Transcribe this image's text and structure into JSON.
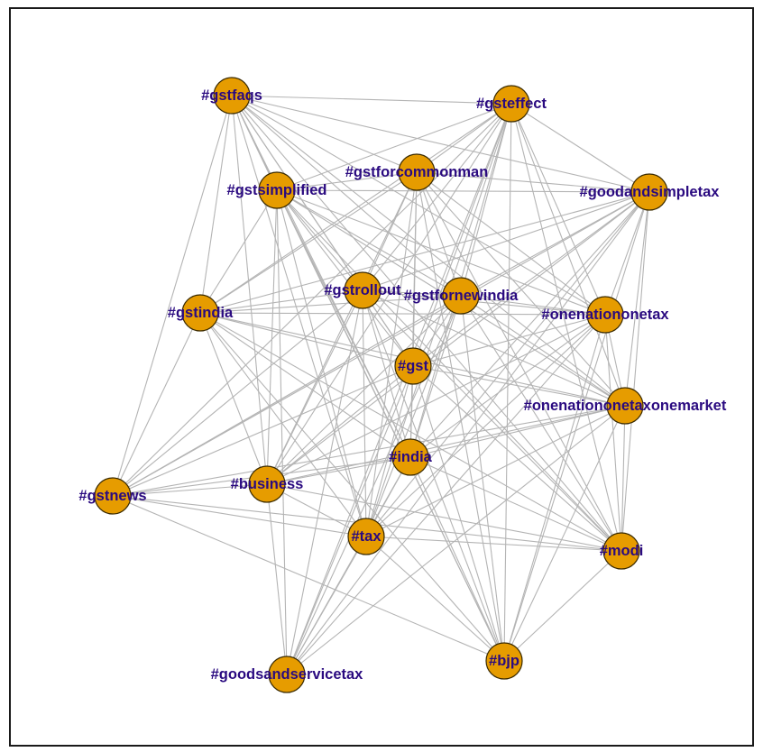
{
  "colors": {
    "node_fill": "#e69c00",
    "edge": "#b4b4b4",
    "label": "#2a0a80"
  },
  "nodes": [
    {
      "id": "gstfaqs",
      "label": "#gstfaqs"
    },
    {
      "id": "gsteffect",
      "label": "#gsteffect"
    },
    {
      "id": "gstforcommonman",
      "label": "#gstforcommonman"
    },
    {
      "id": "gstsimplified",
      "label": "#gstsimplified"
    },
    {
      "id": "goodandsimpletax",
      "label": "#goodandsimpletax"
    },
    {
      "id": "gstrollout",
      "label": "#gstrollout"
    },
    {
      "id": "gstfornewindia",
      "label": "#gstfornewindia"
    },
    {
      "id": "gstindia",
      "label": "#gstindia"
    },
    {
      "id": "onenationonetax",
      "label": "#onenationonetax"
    },
    {
      "id": "gst",
      "label": "#gst"
    },
    {
      "id": "onenationonetaxonemarket",
      "label": "#onenationonetaxonemarket"
    },
    {
      "id": "india",
      "label": "#india"
    },
    {
      "id": "gstnews",
      "label": "#gstnews"
    },
    {
      "id": "business",
      "label": "#business"
    },
    {
      "id": "tax",
      "label": "#tax"
    },
    {
      "id": "modi",
      "label": "#modi"
    },
    {
      "id": "bjp",
      "label": "#bjp"
    },
    {
      "id": "goodsandservicetax",
      "label": "#goodsandservicetax"
    }
  ],
  "edges": [
    [
      "gstfaqs",
      "gsteffect"
    ],
    [
      "gstfaqs",
      "gstforcommonman"
    ],
    [
      "gstfaqs",
      "gstsimplified"
    ],
    [
      "gstfaqs",
      "goodandsimpletax"
    ],
    [
      "gstfaqs",
      "gstrollout"
    ],
    [
      "gstfaqs",
      "gstfornewindia"
    ],
    [
      "gstfaqs",
      "gstindia"
    ],
    [
      "gstfaqs",
      "onenationonetax"
    ],
    [
      "gstfaqs",
      "gst"
    ],
    [
      "gstfaqs",
      "onenationonetaxonemarket"
    ],
    [
      "gstfaqs",
      "india"
    ],
    [
      "gstfaqs",
      "gstnews"
    ],
    [
      "gstfaqs",
      "business"
    ],
    [
      "gstfaqs",
      "tax"
    ],
    [
      "gstfaqs",
      "modi"
    ],
    [
      "gstfaqs",
      "bjp"
    ],
    [
      "gsteffect",
      "gstforcommonman"
    ],
    [
      "gsteffect",
      "gstsimplified"
    ],
    [
      "gsteffect",
      "goodandsimpletax"
    ],
    [
      "gsteffect",
      "gstrollout"
    ],
    [
      "gsteffect",
      "gstfornewindia"
    ],
    [
      "gsteffect",
      "gstindia"
    ],
    [
      "gsteffect",
      "onenationonetax"
    ],
    [
      "gsteffect",
      "gst"
    ],
    [
      "gsteffect",
      "onenationonetaxonemarket"
    ],
    [
      "gsteffect",
      "india"
    ],
    [
      "gsteffect",
      "gstnews"
    ],
    [
      "gsteffect",
      "business"
    ],
    [
      "gsteffect",
      "tax"
    ],
    [
      "gsteffect",
      "modi"
    ],
    [
      "gsteffect",
      "bjp"
    ],
    [
      "gsteffect",
      "goodsandservicetax"
    ],
    [
      "gstforcommonman",
      "gstsimplified"
    ],
    [
      "gstforcommonman",
      "goodandsimpletax"
    ],
    [
      "gstforcommonman",
      "gstrollout"
    ],
    [
      "gstforcommonman",
      "gstfornewindia"
    ],
    [
      "gstforcommonman",
      "gstindia"
    ],
    [
      "gstforcommonman",
      "onenationonetax"
    ],
    [
      "gstforcommonman",
      "gst"
    ],
    [
      "gstforcommonman",
      "onenationonetaxonemarket"
    ],
    [
      "gstforcommonman",
      "india"
    ],
    [
      "gstforcommonman",
      "business"
    ],
    [
      "gstforcommonman",
      "tax"
    ],
    [
      "gstforcommonman",
      "modi"
    ],
    [
      "gstforcommonman",
      "bjp"
    ],
    [
      "gstsimplified",
      "goodandsimpletax"
    ],
    [
      "gstsimplified",
      "gstrollout"
    ],
    [
      "gstsimplified",
      "gstfornewindia"
    ],
    [
      "gstsimplified",
      "gstindia"
    ],
    [
      "gstsimplified",
      "onenationonetax"
    ],
    [
      "gstsimplified",
      "gst"
    ],
    [
      "gstsimplified",
      "onenationonetaxonemarket"
    ],
    [
      "gstsimplified",
      "india"
    ],
    [
      "gstsimplified",
      "business"
    ],
    [
      "gstsimplified",
      "tax"
    ],
    [
      "gstsimplified",
      "modi"
    ],
    [
      "gstsimplified",
      "bjp"
    ],
    [
      "gstsimplified",
      "goodsandservicetax"
    ],
    [
      "goodandsimpletax",
      "gstrollout"
    ],
    [
      "goodandsimpletax",
      "gstfornewindia"
    ],
    [
      "goodandsimpletax",
      "gstindia"
    ],
    [
      "goodandsimpletax",
      "onenationonetax"
    ],
    [
      "goodandsimpletax",
      "gst"
    ],
    [
      "goodandsimpletax",
      "onenationonetaxonemarket"
    ],
    [
      "goodandsimpletax",
      "india"
    ],
    [
      "goodandsimpletax",
      "gstnews"
    ],
    [
      "goodandsimpletax",
      "business"
    ],
    [
      "goodandsimpletax",
      "tax"
    ],
    [
      "goodandsimpletax",
      "modi"
    ],
    [
      "goodandsimpletax",
      "bjp"
    ],
    [
      "goodandsimpletax",
      "goodsandservicetax"
    ],
    [
      "gstrollout",
      "gstfornewindia"
    ],
    [
      "gstrollout",
      "gstindia"
    ],
    [
      "gstrollout",
      "onenationonetax"
    ],
    [
      "gstrollout",
      "gst"
    ],
    [
      "gstrollout",
      "onenationonetaxonemarket"
    ],
    [
      "gstrollout",
      "india"
    ],
    [
      "gstrollout",
      "gstnews"
    ],
    [
      "gstrollout",
      "business"
    ],
    [
      "gstrollout",
      "tax"
    ],
    [
      "gstrollout",
      "modi"
    ],
    [
      "gstrollout",
      "bjp"
    ],
    [
      "gstrollout",
      "goodsandservicetax"
    ],
    [
      "gstfornewindia",
      "gstindia"
    ],
    [
      "gstfornewindia",
      "onenationonetax"
    ],
    [
      "gstfornewindia",
      "gst"
    ],
    [
      "gstfornewindia",
      "onenationonetaxonemarket"
    ],
    [
      "gstfornewindia",
      "india"
    ],
    [
      "gstfornewindia",
      "gstnews"
    ],
    [
      "gstfornewindia",
      "business"
    ],
    [
      "gstfornewindia",
      "tax"
    ],
    [
      "gstfornewindia",
      "modi"
    ],
    [
      "gstfornewindia",
      "bjp"
    ],
    [
      "gstfornewindia",
      "goodsandservicetax"
    ],
    [
      "gstindia",
      "onenationonetax"
    ],
    [
      "gstindia",
      "gst"
    ],
    [
      "gstindia",
      "onenationonetaxonemarket"
    ],
    [
      "gstindia",
      "india"
    ],
    [
      "gstindia",
      "gstnews"
    ],
    [
      "gstindia",
      "business"
    ],
    [
      "gstindia",
      "tax"
    ],
    [
      "gstindia",
      "modi"
    ],
    [
      "gstindia",
      "bjp"
    ],
    [
      "onenationonetax",
      "gst"
    ],
    [
      "onenationonetax",
      "onenationonetaxonemarket"
    ],
    [
      "onenationonetax",
      "india"
    ],
    [
      "onenationonetax",
      "business"
    ],
    [
      "onenationonetax",
      "tax"
    ],
    [
      "onenationonetax",
      "modi"
    ],
    [
      "onenationonetax",
      "bjp"
    ],
    [
      "onenationonetax",
      "goodsandservicetax"
    ],
    [
      "gst",
      "onenationonetaxonemarket"
    ],
    [
      "gst",
      "india"
    ],
    [
      "gst",
      "gstnews"
    ],
    [
      "gst",
      "business"
    ],
    [
      "gst",
      "tax"
    ],
    [
      "gst",
      "modi"
    ],
    [
      "gst",
      "bjp"
    ],
    [
      "gst",
      "goodsandservicetax"
    ],
    [
      "onenationonetaxonemarket",
      "india"
    ],
    [
      "onenationonetaxonemarket",
      "gstnews"
    ],
    [
      "onenationonetaxonemarket",
      "business"
    ],
    [
      "onenationonetaxonemarket",
      "tax"
    ],
    [
      "onenationonetaxonemarket",
      "modi"
    ],
    [
      "onenationonetaxonemarket",
      "bjp"
    ],
    [
      "onenationonetaxonemarket",
      "goodsandservicetax"
    ],
    [
      "india",
      "gstnews"
    ],
    [
      "india",
      "business"
    ],
    [
      "india",
      "tax"
    ],
    [
      "india",
      "modi"
    ],
    [
      "india",
      "bjp"
    ],
    [
      "india",
      "goodsandservicetax"
    ],
    [
      "gstnews",
      "business"
    ],
    [
      "gstnews",
      "tax"
    ],
    [
      "gstnews",
      "modi"
    ],
    [
      "gstnews",
      "bjp"
    ],
    [
      "business",
      "tax"
    ],
    [
      "business",
      "modi"
    ],
    [
      "business",
      "goodsandservicetax"
    ],
    [
      "tax",
      "modi"
    ],
    [
      "tax",
      "bjp"
    ],
    [
      "tax",
      "goodsandservicetax"
    ],
    [
      "modi",
      "bjp"
    ]
  ]
}
